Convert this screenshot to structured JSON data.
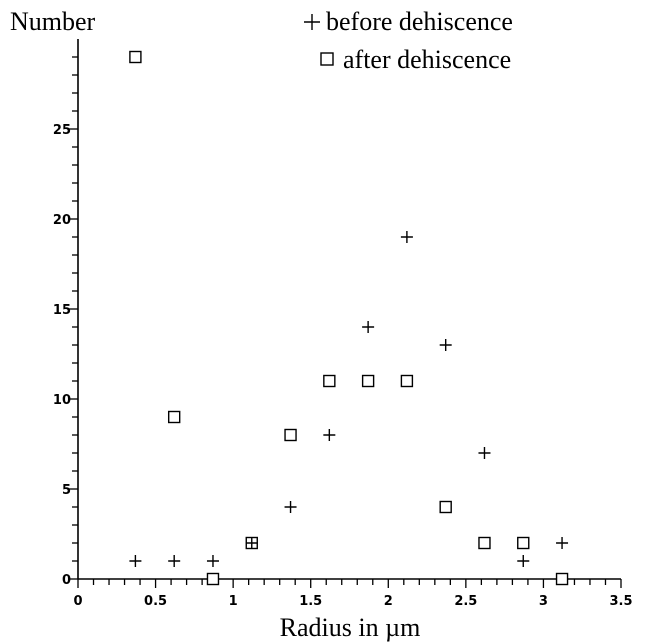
{
  "chart_data": {
    "type": "scatter",
    "ylabel": "Number",
    "xlabel": "Radius in µm",
    "xlim": [
      0,
      3.5
    ],
    "ylim": [
      0,
      30
    ],
    "x_ticks": [
      "0",
      "0.5",
      "1",
      "1.5",
      "2",
      "2.5",
      "3",
      "3.5"
    ],
    "y_ticks": [
      "0",
      "5",
      "10",
      "15",
      "20",
      "25"
    ],
    "grid": false,
    "legend_position": "top-right",
    "series": [
      {
        "name": "before dehiscence",
        "marker": "plus",
        "points": [
          [
            0.37,
            1
          ],
          [
            0.62,
            1
          ],
          [
            0.87,
            1
          ],
          [
            1.12,
            2
          ],
          [
            1.37,
            4
          ],
          [
            1.62,
            8
          ],
          [
            1.87,
            14
          ],
          [
            2.12,
            19
          ],
          [
            2.37,
            13
          ],
          [
            2.62,
            7
          ],
          [
            2.87,
            1
          ],
          [
            3.12,
            2
          ]
        ]
      },
      {
        "name": "after dehiscence",
        "marker": "square",
        "points": [
          [
            0.37,
            29
          ],
          [
            0.62,
            9
          ],
          [
            0.87,
            0
          ],
          [
            1.12,
            2
          ],
          [
            1.37,
            8
          ],
          [
            1.62,
            11
          ],
          [
            1.87,
            11
          ],
          [
            2.12,
            11
          ],
          [
            2.37,
            4
          ],
          [
            2.62,
            2
          ],
          [
            2.87,
            2
          ],
          [
            3.12,
            0
          ]
        ]
      }
    ]
  }
}
